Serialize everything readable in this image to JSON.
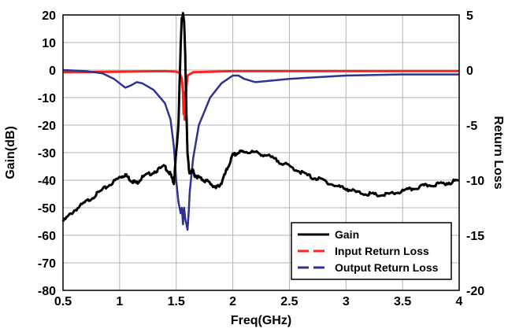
{
  "chart_data": {
    "type": "line",
    "xlabel": "Freq(GHz)",
    "ylabel_left": "Gain(dB)",
    "ylabel_right": "Return Loss",
    "xlim": [
      0.5,
      4
    ],
    "ylim_left": [
      -80,
      20
    ],
    "ylim_right": [
      -20,
      5
    ],
    "x_ticks": [
      "0.5",
      "1",
      "1.5",
      "2",
      "2.5",
      "3",
      "3.5",
      "4"
    ],
    "y_ticks_left": [
      "20",
      "10",
      "0",
      "-10",
      "-20",
      "-30",
      "-40",
      "-50",
      "-60",
      "-70",
      "-80"
    ],
    "y_ticks_right": [
      "5",
      "0",
      "-5",
      "-10",
      "-15",
      "-20"
    ],
    "grid": true,
    "legend_position": "bottom-right",
    "series": [
      {
        "name": "Gain",
        "axis": "left",
        "color": "#000000",
        "x": [
          0.5,
          0.6,
          0.7,
          0.8,
          0.9,
          1.0,
          1.05,
          1.1,
          1.15,
          1.2,
          1.3,
          1.4,
          1.45,
          1.48,
          1.5,
          1.52,
          1.54,
          1.55,
          1.56,
          1.57,
          1.58,
          1.59,
          1.6,
          1.61,
          1.62,
          1.64,
          1.66,
          1.7,
          1.75,
          1.8,
          1.85,
          1.9,
          1.95,
          2.0,
          2.05,
          2.1,
          2.2,
          2.3,
          2.4,
          2.5,
          2.6,
          2.7,
          2.8,
          2.9,
          3.0,
          3.1,
          3.2,
          3.3,
          3.4,
          3.5,
          3.6,
          3.7,
          3.8,
          3.9,
          4.0
        ],
        "y": [
          -55,
          -51,
          -48,
          -45,
          -42,
          -39,
          -38,
          -40,
          -41,
          -39,
          -37,
          -35,
          -38,
          -41,
          -30,
          -20,
          10,
          19,
          20,
          18,
          5,
          -15,
          -30,
          -35,
          -38,
          -36,
          -38,
          -39,
          -40,
          -41,
          -43,
          -41,
          -36,
          -31,
          -30,
          -29.5,
          -30,
          -31,
          -33,
          -35,
          -37,
          -39,
          -40,
          -42,
          -43,
          -44.5,
          -45,
          -45.5,
          -45,
          -44,
          -43,
          -42,
          -41.5,
          -41,
          -40
        ]
      },
      {
        "name": "Input Return Loss",
        "axis": "right",
        "color": "#ff2020",
        "x": [
          0.5,
          1.0,
          1.4,
          1.5,
          1.53,
          1.55,
          1.56,
          1.565,
          1.57,
          1.575,
          1.58,
          1.59,
          1.6,
          1.65,
          2.0,
          3.0,
          4.0
        ],
        "y": [
          -0.2,
          -0.15,
          -0.1,
          -0.15,
          -0.25,
          -0.8,
          -2.0,
          -4.0,
          -2.0,
          -4.5,
          -3.5,
          -1.5,
          -0.5,
          -0.2,
          -0.1,
          -0.1,
          -0.1
        ]
      },
      {
        "name": "Output Return Loss",
        "axis": "right",
        "color": "#2f3293",
        "x": [
          0.5,
          0.7,
          0.85,
          0.95,
          1.0,
          1.05,
          1.1,
          1.15,
          1.2,
          1.3,
          1.4,
          1.45,
          1.48,
          1.5,
          1.52,
          1.54,
          1.55,
          1.56,
          1.57,
          1.58,
          1.59,
          1.6,
          1.61,
          1.62,
          1.65,
          1.7,
          1.8,
          1.9,
          2.0,
          2.05,
          2.1,
          2.2,
          2.3,
          2.5,
          3.0,
          3.5,
          4.0
        ],
        "y": [
          0,
          -0.1,
          -0.3,
          -0.8,
          -1.2,
          -1.6,
          -1.4,
          -1.1,
          -1.2,
          -1.8,
          -3.0,
          -4.5,
          -7.0,
          -10.0,
          -12.0,
          -13.0,
          -12.5,
          -14.0,
          -12.5,
          -13.5,
          -14.0,
          -14.5,
          -13.0,
          -11.0,
          -8.0,
          -5.0,
          -2.5,
          -1.2,
          -0.5,
          -0.5,
          -0.8,
          -1.1,
          -1.0,
          -0.8,
          -0.5,
          -0.4,
          -0.4
        ]
      }
    ]
  }
}
